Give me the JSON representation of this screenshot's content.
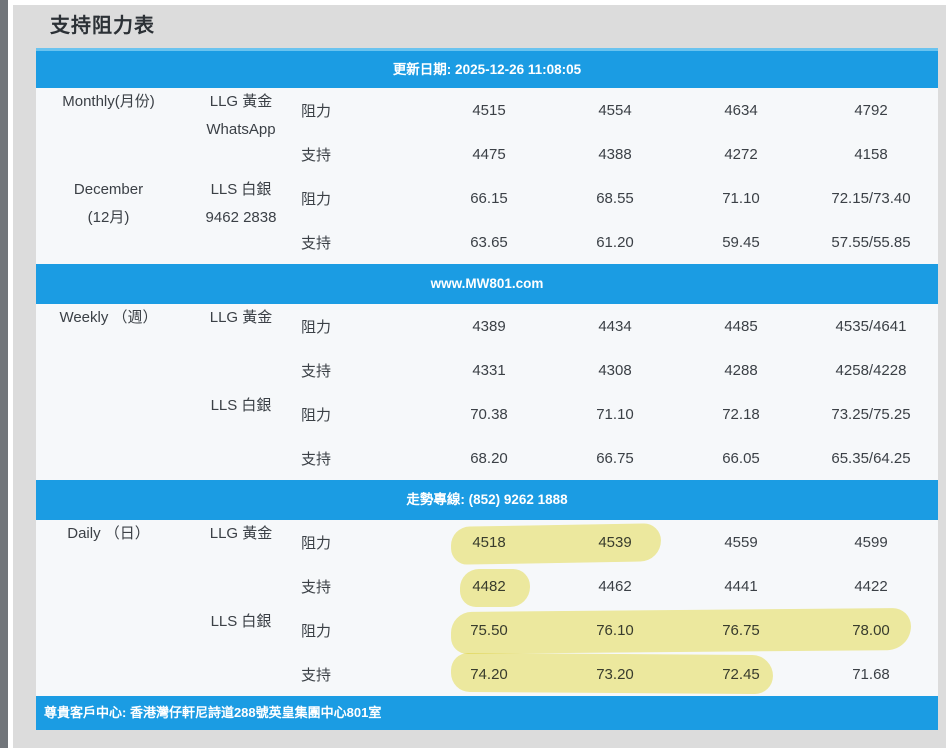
{
  "page": {
    "title": "支持阻力表"
  },
  "colors": {
    "banner_blue": "#1b9ce3",
    "banner_blue_light": "#6ac3ef",
    "highlight_yellow": "#f5efa1"
  },
  "banners": {
    "update": "更新日期: 2025-12-26 11:08:05",
    "website": "www.MW801.com",
    "hotline": "走勢專線: (852) 9262 1888",
    "address": "尊貴客戶中心: 香港灣仔軒尼詩道288號英皇集團中心801室"
  },
  "table": {
    "sections": [
      {
        "name": "Monthly",
        "groups": [
          {
            "period": [
              "Monthly(月份)"
            ],
            "product": [
              "LLG 黃金",
              "WhatsApp"
            ],
            "rows": [
              {
                "type": "阻力",
                "values": [
                  "4515",
                  "4554",
                  "4634",
                  "4792"
                ]
              },
              {
                "type": "支持",
                "values": [
                  "4475",
                  "4388",
                  "4272",
                  "4158"
                ]
              }
            ]
          },
          {
            "period": [
              "December",
              "(12月)"
            ],
            "product": [
              "LLS 白銀",
              "9462 2838"
            ],
            "rows": [
              {
                "type": "阻力",
                "values": [
                  "66.15",
                  "68.55",
                  "71.10",
                  "72.15/73.40"
                ]
              },
              {
                "type": "支持",
                "values": [
                  "63.65",
                  "61.20",
                  "59.45",
                  "57.55/55.85"
                ]
              }
            ]
          }
        ]
      },
      {
        "name": "Weekly",
        "groups": [
          {
            "period": [
              "Weekly （週）"
            ],
            "product": [
              "LLG 黃金"
            ],
            "rows": [
              {
                "type": "阻力",
                "values": [
                  "4389",
                  "4434",
                  "4485",
                  "4535/4641"
                ]
              },
              {
                "type": "支持",
                "values": [
                  "4331",
                  "4308",
                  "4288",
                  "4258/4228"
                ]
              }
            ]
          },
          {
            "period": [],
            "product": [
              "LLS 白銀"
            ],
            "rows": [
              {
                "type": "阻力",
                "values": [
                  "70.38",
                  "71.10",
                  "72.18",
                  "73.25/75.25"
                ]
              },
              {
                "type": "支持",
                "values": [
                  "68.20",
                  "66.75",
                  "66.05",
                  "65.35/64.25"
                ]
              }
            ]
          }
        ]
      },
      {
        "name": "Daily",
        "groups": [
          {
            "period": [
              "Daily （日）"
            ],
            "product": [
              "LLG 黃金"
            ],
            "rows": [
              {
                "type": "阻力",
                "values": [
                  "4518",
                  "4539",
                  "4559",
                  "4599"
                ]
              },
              {
                "type": "支持",
                "values": [
                  "4482",
                  "4462",
                  "4441",
                  "4422"
                ]
              }
            ]
          },
          {
            "period": [],
            "product": [
              "LLS 白銀"
            ],
            "rows": [
              {
                "type": "阻力",
                "values": [
                  "75.50",
                  "76.10",
                  "76.75",
                  "78.00"
                ]
              },
              {
                "type": "支持",
                "values": [
                  "74.20",
                  "73.20",
                  "72.45",
                  "71.68"
                ]
              }
            ]
          }
        ]
      }
    ]
  },
  "highlights": {
    "color": "#f5efa1",
    "marked_values": [
      {
        "section": "Daily",
        "row": "LLG 黃金 阻力",
        "values": [
          "4518",
          "4539"
        ]
      },
      {
        "section": "Daily",
        "row": "LLG 黃金 支持",
        "values": [
          "4482"
        ]
      },
      {
        "section": "Daily",
        "row": "LLS 白銀 阻力",
        "values": [
          "75.50",
          "76.10",
          "76.75",
          "78.00"
        ]
      },
      {
        "section": "Daily",
        "row": "LLS 白銀 支持",
        "values": [
          "74.20",
          "73.20",
          "72.45"
        ]
      }
    ]
  }
}
